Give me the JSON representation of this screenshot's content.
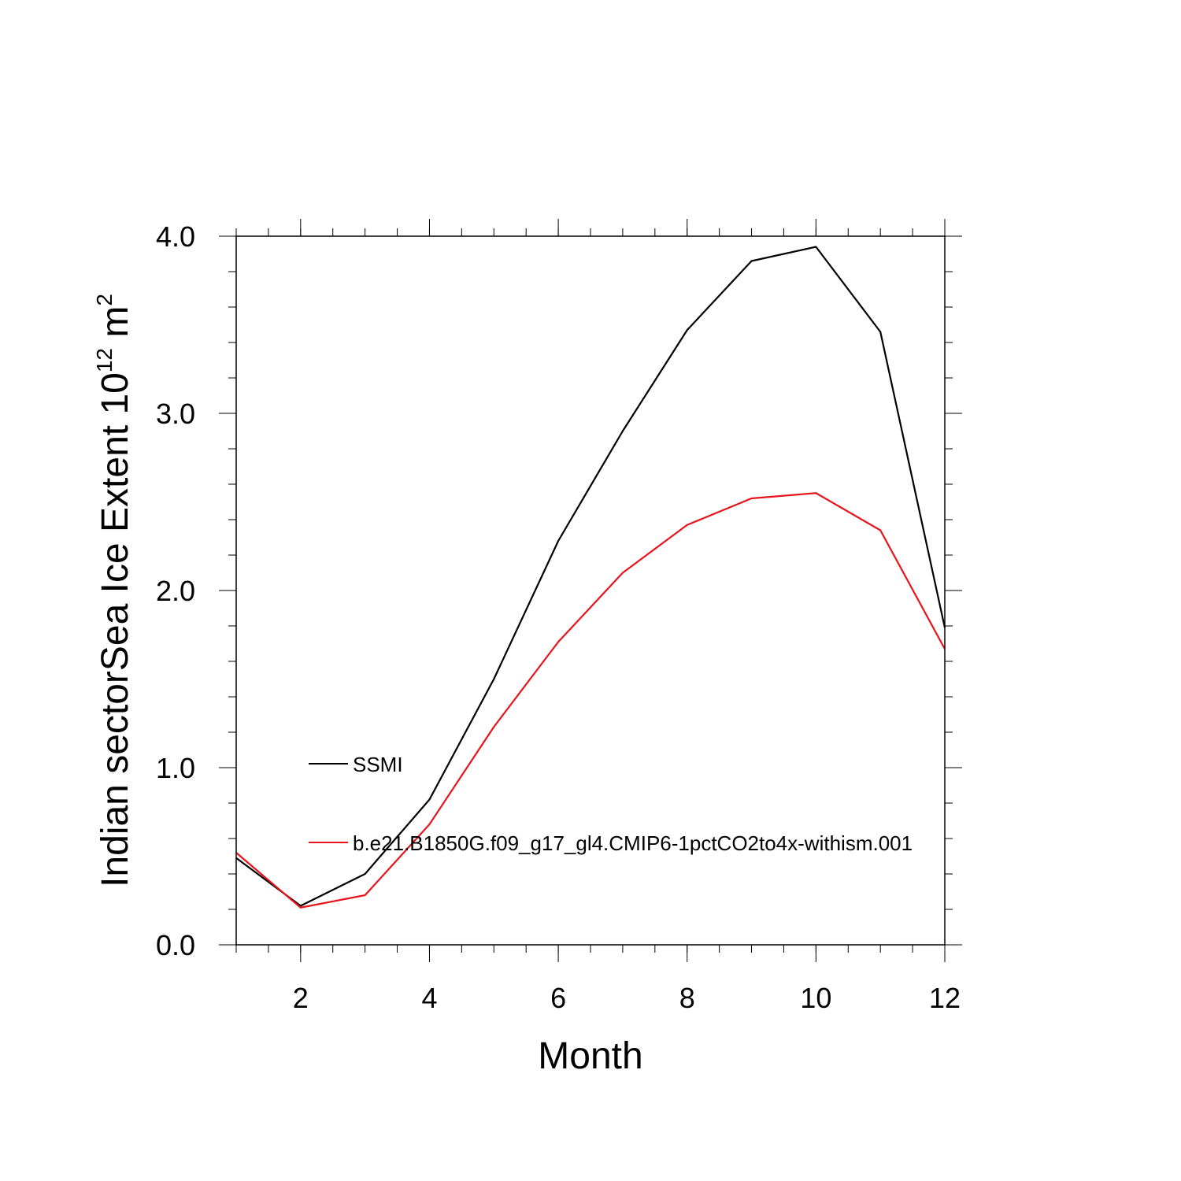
{
  "chart_data": {
    "type": "line",
    "xlabel": "Month",
    "ylabel_main": "Indian sectorSea Ice Extent 10",
    "ylabel_exp": "12",
    "ylabel_unit": " m",
    "ylabel_unit_exp": "2",
    "xlim": [
      1,
      12
    ],
    "ylim": [
      0,
      4
    ],
    "x_ticks": [
      2,
      4,
      6,
      8,
      10,
      12
    ],
    "y_ticks": [
      "0.0",
      "1.0",
      "2.0",
      "3.0",
      "4.0"
    ],
    "grid": false,
    "legend_position": "inside-left",
    "x": [
      1,
      2,
      3,
      4,
      5,
      6,
      7,
      8,
      9,
      10,
      11,
      12
    ],
    "series": [
      {
        "name": "SSMI",
        "color": "#000000",
        "values": [
          0.49,
          0.22,
          0.4,
          0.82,
          1.5,
          2.28,
          2.9,
          3.47,
          3.86,
          3.94,
          3.46,
          1.79
        ]
      },
      {
        "name": "b.e21.B1850G.f09_g17_gl4.CMIP6-1pctCO2to4x-withism.001",
        "color": "#e8141b",
        "values": [
          0.52,
          0.21,
          0.28,
          0.68,
          1.23,
          1.71,
          2.1,
          2.37,
          2.52,
          2.55,
          2.34,
          1.67
        ]
      }
    ]
  }
}
